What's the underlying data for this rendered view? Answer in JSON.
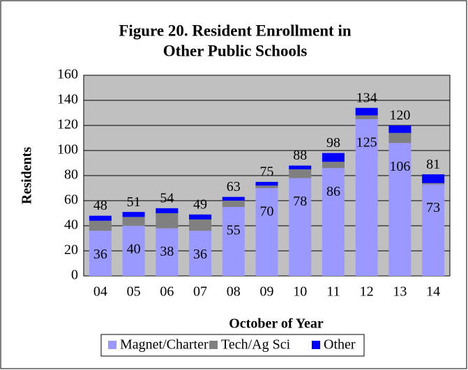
{
  "chart_data": {
    "type": "stacked_bar",
    "title": [
      "Figure 20.  Resident Enrollment in",
      "Other Public Schools"
    ],
    "x_label": "October of Year",
    "y_label": "Residents",
    "categories": [
      "04",
      "05",
      "06",
      "07",
      "08",
      "09",
      "10",
      "11",
      "12",
      "13",
      "14"
    ],
    "series": [
      {
        "name": "Magnet/Charter",
        "color": "#9999ff",
        "values": [
          36,
          40,
          38,
          36,
          55,
          70,
          78,
          86,
          125,
          106,
          73
        ]
      },
      {
        "name": "Tech/Ag Sci",
        "color": "#808080",
        "values": [
          8,
          7,
          12,
          9,
          5,
          2,
          7,
          5,
          3,
          8,
          1
        ]
      },
      {
        "name": "Other",
        "color": "#0000ff",
        "values": [
          4,
          4,
          4,
          4,
          3,
          3,
          3,
          7,
          6,
          6,
          7
        ]
      }
    ],
    "totals": [
      48,
      51,
      54,
      49,
      63,
      75,
      88,
      98,
      134,
      120,
      81
    ],
    "ylim": [
      0,
      160
    ],
    "yticks": [
      0,
      20,
      40,
      60,
      80,
      100,
      120,
      140,
      160
    ],
    "grid": true,
    "legend": "bottom"
  }
}
